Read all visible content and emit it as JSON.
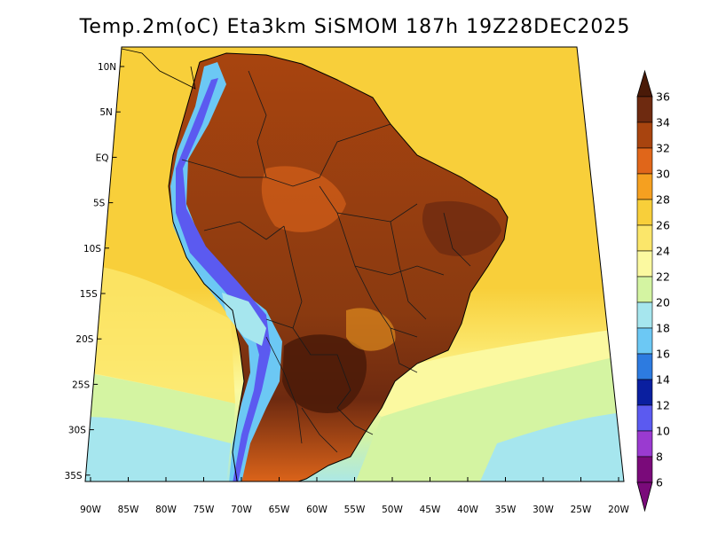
{
  "title": "Temp.2m(oC) Eta3km SiSMOM 187h 19Z28DEC2025",
  "map": {
    "variable": "2m temperature",
    "units": "oC",
    "lat_labels": [
      "10N",
      "5N",
      "EQ",
      "5S",
      "10S",
      "15S",
      "20S",
      "25S",
      "30S",
      "35S"
    ],
    "lon_labels": [
      "90W",
      "85W",
      "80W",
      "75W",
      "70W",
      "65W",
      "60W",
      "55W",
      "50W",
      "45W",
      "40W",
      "35W",
      "30W",
      "25W",
      "20W"
    ]
  },
  "colorbar": {
    "levels": [
      "36",
      "34",
      "32",
      "30",
      "28",
      "26",
      "24",
      "22",
      "20",
      "18",
      "16",
      "14",
      "12",
      "10",
      "8",
      "6"
    ],
    "colors": [
      "#4a1a08",
      "#6e2a10",
      "#a8440f",
      "#e0661a",
      "#f5a020",
      "#f8cf3a",
      "#fbe66a",
      "#fbf9a0",
      "#d4f4a2",
      "#a6e6ee",
      "#6cc8f4",
      "#2d7be0",
      "#0a1fa0",
      "#5b5af0",
      "#9a3ad0",
      "#7a0a7a"
    ]
  },
  "colors": {
    "ocean_north": "#f8cf3a",
    "ocean_south": "#d4f4a2",
    "ocean_cold": "#a6e6ee",
    "land_hot": "#a8440f",
    "land_very_hot": "#6e2a10",
    "andes_cold": "#5b5af0"
  }
}
